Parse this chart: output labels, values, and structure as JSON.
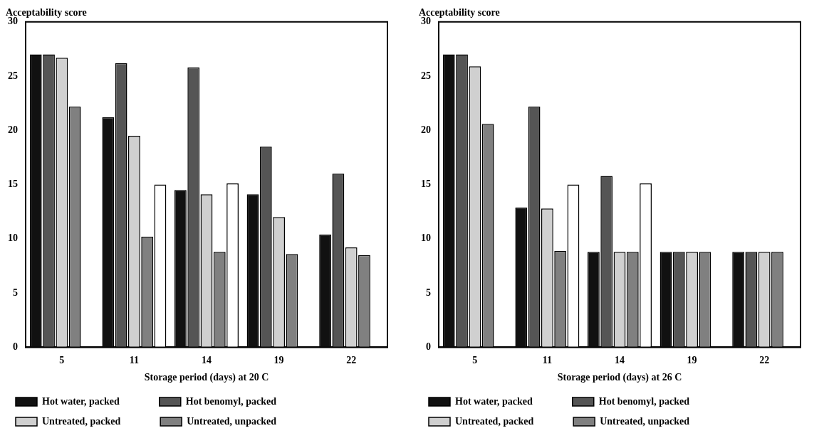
{
  "chart_data": [
    {
      "type": "bar",
      "ylabel": "Acceptability score",
      "xlabel": "Storage period (days) at 20 C",
      "categories": [
        "5",
        "11",
        "14",
        "19",
        "22"
      ],
      "ylim": [
        0,
        30
      ],
      "yticks": [
        0,
        5,
        10,
        15,
        20,
        25,
        30
      ],
      "grid": false,
      "legend": "bottom",
      "series": [
        {
          "name": "Hot water, packed",
          "color": "#111111",
          "values": [
            27,
            21.2,
            14.5,
            14.1,
            10.4
          ]
        },
        {
          "name": "Hot benomyl, packed",
          "color": "#555555",
          "values": [
            27,
            26.2,
            25.8,
            18.5,
            16
          ]
        },
        {
          "name": "Untreated, packed",
          "color": "#d0d0d0",
          "values": [
            26.7,
            19.5,
            14.1,
            12,
            9.2
          ]
        },
        {
          "name": "Untreated, unpacked",
          "color": "#808080",
          "values": [
            22.2,
            10.2,
            8.8,
            8.6,
            8.5
          ]
        },
        {
          "color": "#ffffff",
          "values": [
            null,
            15,
            15.1,
            null,
            null
          ]
        }
      ]
    },
    {
      "type": "bar",
      "ylabel": "Acceptability score",
      "xlabel": "Storage period (days) at 26 C",
      "categories": [
        "5",
        "11",
        "14",
        "19",
        "22"
      ],
      "ylim": [
        0,
        30
      ],
      "yticks": [
        0,
        5,
        10,
        15,
        20,
        25,
        30
      ],
      "grid": false,
      "legend": "bottom",
      "series": [
        {
          "name": "Hot water, packed",
          "color": "#111111",
          "values": [
            27,
            12.9,
            8.8,
            8.8,
            8.8
          ]
        },
        {
          "name": "Hot benomyl, packed",
          "color": "#555555",
          "values": [
            27,
            22.2,
            15.8,
            8.8,
            8.8
          ]
        },
        {
          "name": "Untreated, packed",
          "color": "#d0d0d0",
          "values": [
            25.9,
            12.8,
            8.8,
            8.8,
            8.8
          ]
        },
        {
          "name": "Untreated, unpacked",
          "color": "#808080",
          "values": [
            20.6,
            8.9,
            8.8,
            8.8,
            8.8
          ]
        },
        {
          "color": "#ffffff",
          "values": [
            null,
            15,
            15.1,
            null,
            null
          ]
        }
      ]
    }
  ]
}
